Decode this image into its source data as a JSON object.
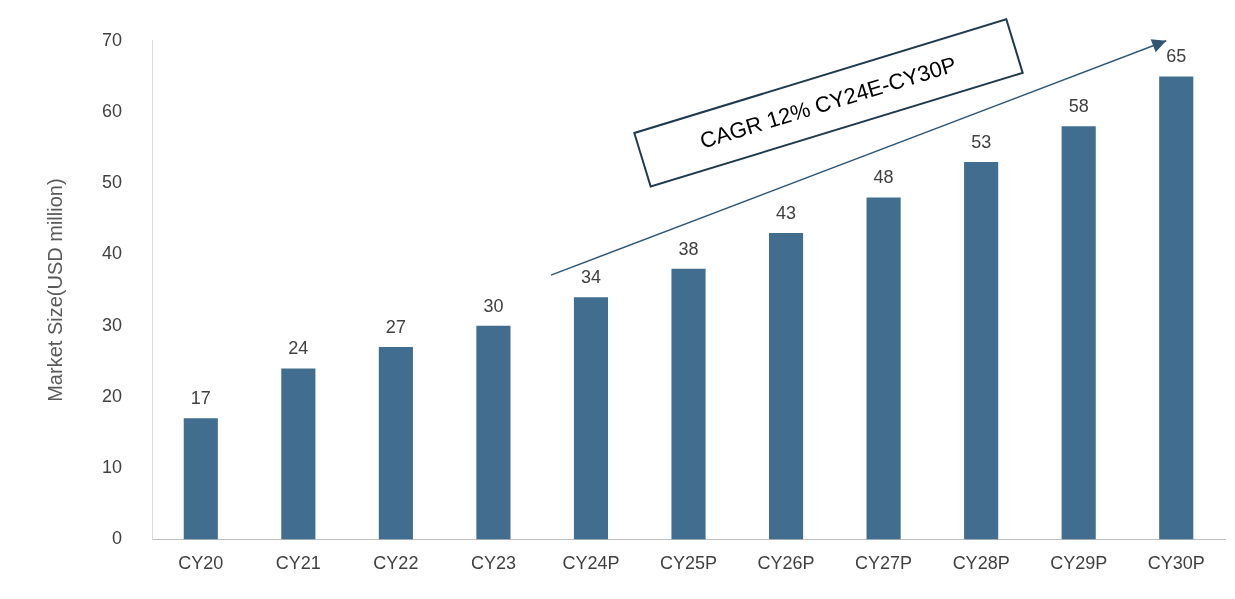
{
  "chart_data": {
    "type": "bar",
    "ylabel": "Market Size(USD million)",
    "categories": [
      "CY20",
      "CY21",
      "CY22",
      "CY23",
      "CY24P",
      "CY25P",
      "CY26P",
      "CY27P",
      "CY28P",
      "CY29P",
      "CY30P"
    ],
    "values": [
      17,
      24,
      27,
      30,
      34,
      38,
      43,
      48,
      53,
      58,
      65
    ],
    "color": "#416e8f",
    "ylim": [
      0,
      70
    ],
    "yticks": [
      0,
      10,
      20,
      30,
      40,
      50,
      60,
      70
    ],
    "grid": false,
    "legend": false,
    "data_labels": true,
    "annotations": [
      "CAGR 12% CY24E-CY30P"
    ]
  }
}
